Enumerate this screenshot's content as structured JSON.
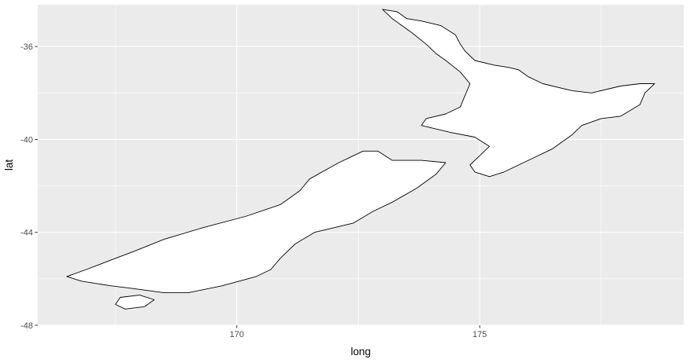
{
  "chart_data": {
    "type": "map",
    "theme": "ggplot2-gray",
    "grid": true,
    "xlabel": "long",
    "ylabel": "lat",
    "xlim": [
      165.9,
      179.2
    ],
    "ylim": [
      -48.0,
      -34.2
    ],
    "x_ticks": [
      170,
      175
    ],
    "y_ticks": [
      -36,
      -40,
      -44,
      -48
    ],
    "x_tick_labels": [
      "170",
      "175"
    ],
    "y_tick_labels": [
      "-36",
      "-40",
      "-44",
      "-48"
    ],
    "colors": {
      "panel_background": "#ebebeb",
      "grid": "#ffffff",
      "land_fill": "#ffffff",
      "land_stroke": "#000000",
      "tick_label": "#4d4d4d"
    },
    "regions": [
      {
        "id": "north-island",
        "coords": [
          [
            173.0,
            -34.4
          ],
          [
            173.3,
            -34.5
          ],
          [
            173.5,
            -34.8
          ],
          [
            173.8,
            -34.9
          ],
          [
            174.2,
            -35.1
          ],
          [
            174.5,
            -35.5
          ],
          [
            174.6,
            -35.9
          ],
          [
            174.7,
            -36.2
          ],
          [
            174.9,
            -36.6
          ],
          [
            175.3,
            -36.8
          ],
          [
            175.6,
            -36.9
          ],
          [
            175.8,
            -37.0
          ],
          [
            176.0,
            -37.3
          ],
          [
            176.3,
            -37.6
          ],
          [
            176.9,
            -37.9
          ],
          [
            177.3,
            -38.0
          ],
          [
            177.9,
            -37.7
          ],
          [
            178.3,
            -37.6
          ],
          [
            178.6,
            -37.6
          ],
          [
            178.4,
            -38.0
          ],
          [
            178.3,
            -38.5
          ],
          [
            177.9,
            -39.0
          ],
          [
            177.5,
            -39.1
          ],
          [
            177.1,
            -39.4
          ],
          [
            176.9,
            -39.8
          ],
          [
            176.5,
            -40.4
          ],
          [
            176.0,
            -40.9
          ],
          [
            175.5,
            -41.4
          ],
          [
            175.2,
            -41.6
          ],
          [
            174.9,
            -41.4
          ],
          [
            174.8,
            -41.1
          ],
          [
            175.0,
            -40.7
          ],
          [
            175.2,
            -40.3
          ],
          [
            174.9,
            -39.9
          ],
          [
            174.4,
            -39.7
          ],
          [
            173.8,
            -39.4
          ],
          [
            173.9,
            -39.1
          ],
          [
            174.3,
            -38.9
          ],
          [
            174.6,
            -38.6
          ],
          [
            174.7,
            -38.1
          ],
          [
            174.8,
            -37.6
          ],
          [
            174.6,
            -37.1
          ],
          [
            174.3,
            -36.6
          ],
          [
            174.1,
            -36.3
          ],
          [
            173.9,
            -35.9
          ],
          [
            173.6,
            -35.4
          ],
          [
            173.4,
            -35.1
          ],
          [
            173.2,
            -34.8
          ]
        ]
      },
      {
        "id": "south-island",
        "coords": [
          [
            172.6,
            -40.5
          ],
          [
            172.9,
            -40.5
          ],
          [
            173.2,
            -40.9
          ],
          [
            173.8,
            -40.9
          ],
          [
            174.3,
            -41.0
          ],
          [
            174.1,
            -41.5
          ],
          [
            173.7,
            -42.1
          ],
          [
            173.2,
            -42.7
          ],
          [
            172.8,
            -43.1
          ],
          [
            172.4,
            -43.6
          ],
          [
            171.6,
            -44.0
          ],
          [
            171.2,
            -44.5
          ],
          [
            170.9,
            -45.1
          ],
          [
            170.7,
            -45.6
          ],
          [
            170.4,
            -45.9
          ],
          [
            169.7,
            -46.3
          ],
          [
            169.0,
            -46.6
          ],
          [
            168.5,
            -46.6
          ],
          [
            167.8,
            -46.4
          ],
          [
            167.4,
            -46.3
          ],
          [
            166.8,
            -46.1
          ],
          [
            166.5,
            -45.9
          ],
          [
            166.9,
            -45.6
          ],
          [
            167.4,
            -45.2
          ],
          [
            167.9,
            -44.8
          ],
          [
            168.5,
            -44.3
          ],
          [
            169.3,
            -43.8
          ],
          [
            170.2,
            -43.3
          ],
          [
            170.9,
            -42.8
          ],
          [
            171.3,
            -42.2
          ],
          [
            171.5,
            -41.7
          ],
          [
            172.1,
            -41.0
          ],
          [
            172.4,
            -40.7
          ]
        ]
      },
      {
        "id": "stewart-island",
        "coords": [
          [
            167.6,
            -46.8
          ],
          [
            168.0,
            -46.7
          ],
          [
            168.3,
            -46.9
          ],
          [
            168.1,
            -47.2
          ],
          [
            167.7,
            -47.3
          ],
          [
            167.5,
            -47.1
          ]
        ]
      }
    ]
  }
}
